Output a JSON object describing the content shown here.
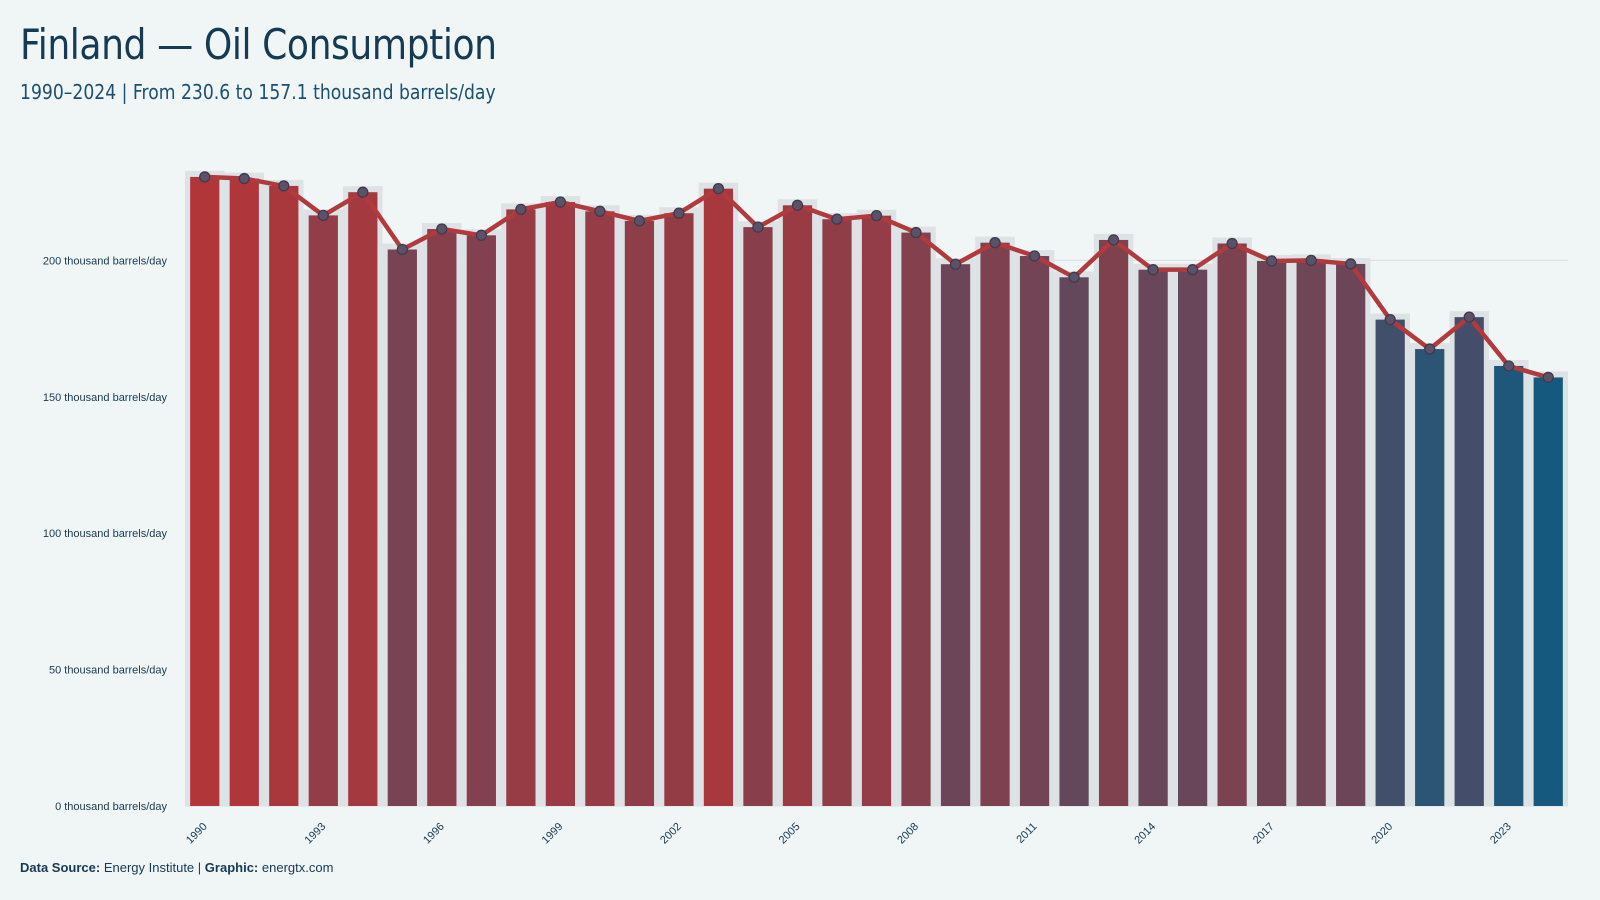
{
  "header": {
    "title": "Finland — Oil Consumption",
    "subtitle": "1990–2024 | From 230.6 to 157.1 thousand barrels/day"
  },
  "footer": {
    "source_label": "Data Source:",
    "source_value": "Energy Institute",
    "separator": "|",
    "graphic_label": "Graphic:",
    "graphic_value": "energtx.com"
  },
  "colors": {
    "background": "#f0f5f5",
    "line": "#b03a3e",
    "bar_high": "#b0363a",
    "bar_low": "#16597e",
    "grid": "#dde3e5"
  },
  "chart_data": {
    "type": "bar",
    "title": "Finland — Oil Consumption",
    "subtitle": "1990–2024 | From 230.6 to 157.1 thousand barrels/day",
    "xlabel": "",
    "ylabel": "",
    "unit": "thousand barrels/day",
    "ylim": [
      0,
      240
    ],
    "y_ticks": [
      0,
      50,
      100,
      150,
      200
    ],
    "y_tick_labels": [
      "0 thousand barrels/day",
      "50 thousand barrels/day",
      "100 thousand barrels/day",
      "150 thousand barrels/day",
      "200 thousand barrels/day"
    ],
    "x_tick_labels": [
      "1990",
      "1993",
      "1996",
      "1999",
      "2002",
      "2005",
      "2008",
      "2011",
      "2014",
      "2017",
      "2020",
      "2023"
    ],
    "grid": true,
    "overlay": "line with markers",
    "categories": [
      "1990",
      "1991",
      "1992",
      "1993",
      "1994",
      "1995",
      "1996",
      "1997",
      "1998",
      "1999",
      "2000",
      "2001",
      "2002",
      "2003",
      "2004",
      "2005",
      "2006",
      "2007",
      "2008",
      "2009",
      "2010",
      "2011",
      "2012",
      "2013",
      "2014",
      "2015",
      "2016",
      "2017",
      "2018",
      "2019",
      "2020",
      "2021",
      "2022",
      "2023",
      "2024"
    ],
    "values": [
      230.6,
      230.0,
      227.3,
      216.5,
      225.0,
      204.0,
      211.5,
      209.2,
      218.7,
      221.4,
      218.0,
      214.5,
      217.3,
      226.3,
      212.2,
      220.2,
      215.1,
      216.4,
      210.2,
      198.6,
      206.5,
      201.6,
      193.8,
      207.5,
      196.6,
      196.6,
      206.2,
      199.8,
      200.0,
      198.7,
      178.3,
      167.5,
      179.2,
      161.3,
      157.1
    ]
  }
}
